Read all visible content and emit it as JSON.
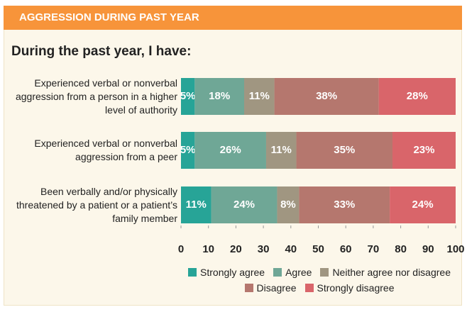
{
  "chart_data": {
    "type": "stacked-bar-horizontal",
    "title": "AGGRESSION DURING PAST YEAR",
    "subtitle": "During the past year, I have:",
    "categories": [
      "Experienced verbal or nonverbal aggression from a person in a higher level of authority",
      "Experienced verbal or nonverbal aggression from a peer",
      "Been verbally and/or physically threatened by a patient or a patient’s family member"
    ],
    "series": [
      {
        "name": "Strongly agree",
        "color": "#27a497",
        "values": [
          5,
          5,
          11
        ],
        "value_labels": [
          "5%",
          "5%",
          "11%"
        ]
      },
      {
        "name": "Agree",
        "color": "#6fa796",
        "values": [
          18,
          26,
          24
        ],
        "value_labels": [
          "18%",
          "26%",
          "24%"
        ]
      },
      {
        "name": "Neither agree nor disagree",
        "color": "#a09681",
        "values": [
          11,
          11,
          8
        ],
        "value_labels": [
          "11%",
          "11%",
          "8%"
        ]
      },
      {
        "name": "Disagree",
        "color": "#b5776e",
        "values": [
          38,
          35,
          33
        ],
        "value_labels": [
          "38%",
          "35%",
          "33%"
        ]
      },
      {
        "name": "Strongly disagree",
        "color": "#d9656a",
        "values": [
          28,
          23,
          24
        ],
        "value_labels": [
          "28%",
          "23%",
          "24%"
        ]
      }
    ],
    "xlim": [
      0,
      100
    ],
    "xticks": [
      0,
      10,
      20,
      30,
      40,
      50,
      60,
      70,
      80,
      90,
      100
    ],
    "grid": false
  }
}
